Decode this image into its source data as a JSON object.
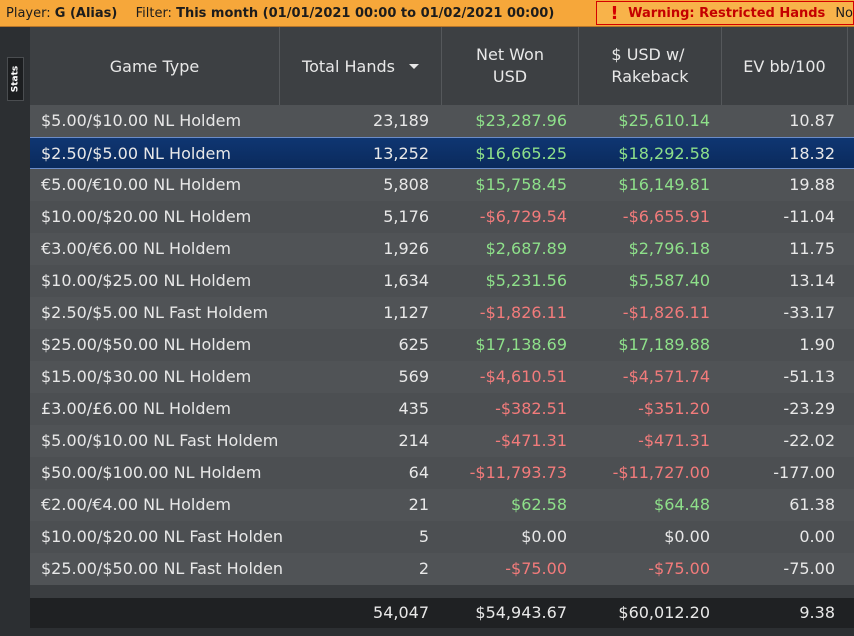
{
  "topbar": {
    "player_label": "Player:",
    "player_value": "G (Alias)",
    "filter_label": "Filter:",
    "filter_value": "This month (01/01/2021 00:00 to 01/02/2021 00:00)",
    "warning_text": "Warning: Restricted Hands",
    "warning_tail": "No"
  },
  "sidebar": {
    "stats_tab": "Stats"
  },
  "columns": {
    "game_type": "Game Type",
    "total_hands": "Total Hands",
    "net_won_l1": "Net Won",
    "net_won_l2": "USD",
    "rakeback_l1": "$ USD w/",
    "rakeback_l2": "Rakeback",
    "ev": "EV bb/100"
  },
  "rows": [
    {
      "game": "$5.00/$10.00 NL Holdem",
      "hands": "23,189",
      "net": "$23,287.96",
      "rb": "$25,610.14",
      "ev": "10.87"
    },
    {
      "game": "$2.50/$5.00 NL Holdem",
      "hands": "13,252",
      "net": "$16,665.25",
      "rb": "$18,292.58",
      "ev": "18.32"
    },
    {
      "game": "€5.00/€10.00 NL Holdem",
      "hands": "5,808",
      "net": "$15,758.45",
      "rb": "$16,149.81",
      "ev": "19.88"
    },
    {
      "game": "$10.00/$20.00 NL Holdem",
      "hands": "5,176",
      "net": "-$6,729.54",
      "rb": "-$6,655.91",
      "ev": "-11.04"
    },
    {
      "game": "€3.00/€6.00 NL Holdem",
      "hands": "1,926",
      "net": "$2,687.89",
      "rb": "$2,796.18",
      "ev": "11.75"
    },
    {
      "game": "$10.00/$25.00 NL Holdem",
      "hands": "1,634",
      "net": "$5,231.56",
      "rb": "$5,587.40",
      "ev": "13.14"
    },
    {
      "game": "$2.50/$5.00 NL Fast Holdem",
      "hands": "1,127",
      "net": "-$1,826.11",
      "rb": "-$1,826.11",
      "ev": "-33.17"
    },
    {
      "game": "$25.00/$50.00 NL Holdem",
      "hands": "625",
      "net": "$17,138.69",
      "rb": "$17,189.88",
      "ev": "1.90"
    },
    {
      "game": "$15.00/$30.00 NL Holdem",
      "hands": "569",
      "net": "-$4,610.51",
      "rb": "-$4,571.74",
      "ev": "-51.13"
    },
    {
      "game": "£3.00/£6.00 NL Holdem",
      "hands": "435",
      "net": "-$382.51",
      "rb": "-$351.20",
      "ev": "-23.29"
    },
    {
      "game": "$5.00/$10.00 NL Fast Holdem",
      "hands": "214",
      "net": "-$471.31",
      "rb": "-$471.31",
      "ev": "-22.02"
    },
    {
      "game": "$50.00/$100.00 NL Holdem",
      "hands": "64",
      "net": "-$11,793.73",
      "rb": "-$11,727.00",
      "ev": "-177.00"
    },
    {
      "game": "€2.00/€4.00 NL Holdem",
      "hands": "21",
      "net": "$62.58",
      "rb": "$64.48",
      "ev": "61.38"
    },
    {
      "game": "$10.00/$20.00 NL Fast Holden",
      "hands": "5",
      "net": "$0.00",
      "rb": "$0.00",
      "ev": "0.00"
    },
    {
      "game": "$25.00/$50.00 NL Fast Holden",
      "hands": "2",
      "net": "-$75.00",
      "rb": "-$75.00",
      "ev": "-75.00"
    }
  ],
  "totals": {
    "hands": "54,047",
    "net": "$54,943.67",
    "rb": "$60,012.20",
    "ev": "9.38"
  },
  "colors": {
    "positive": "#8ee08a",
    "negative": "#f27b7b",
    "selected_row": "#0f3672",
    "topbar": "#f6a73a",
    "warning": "#c40000"
  },
  "selected_row_index": 1
}
